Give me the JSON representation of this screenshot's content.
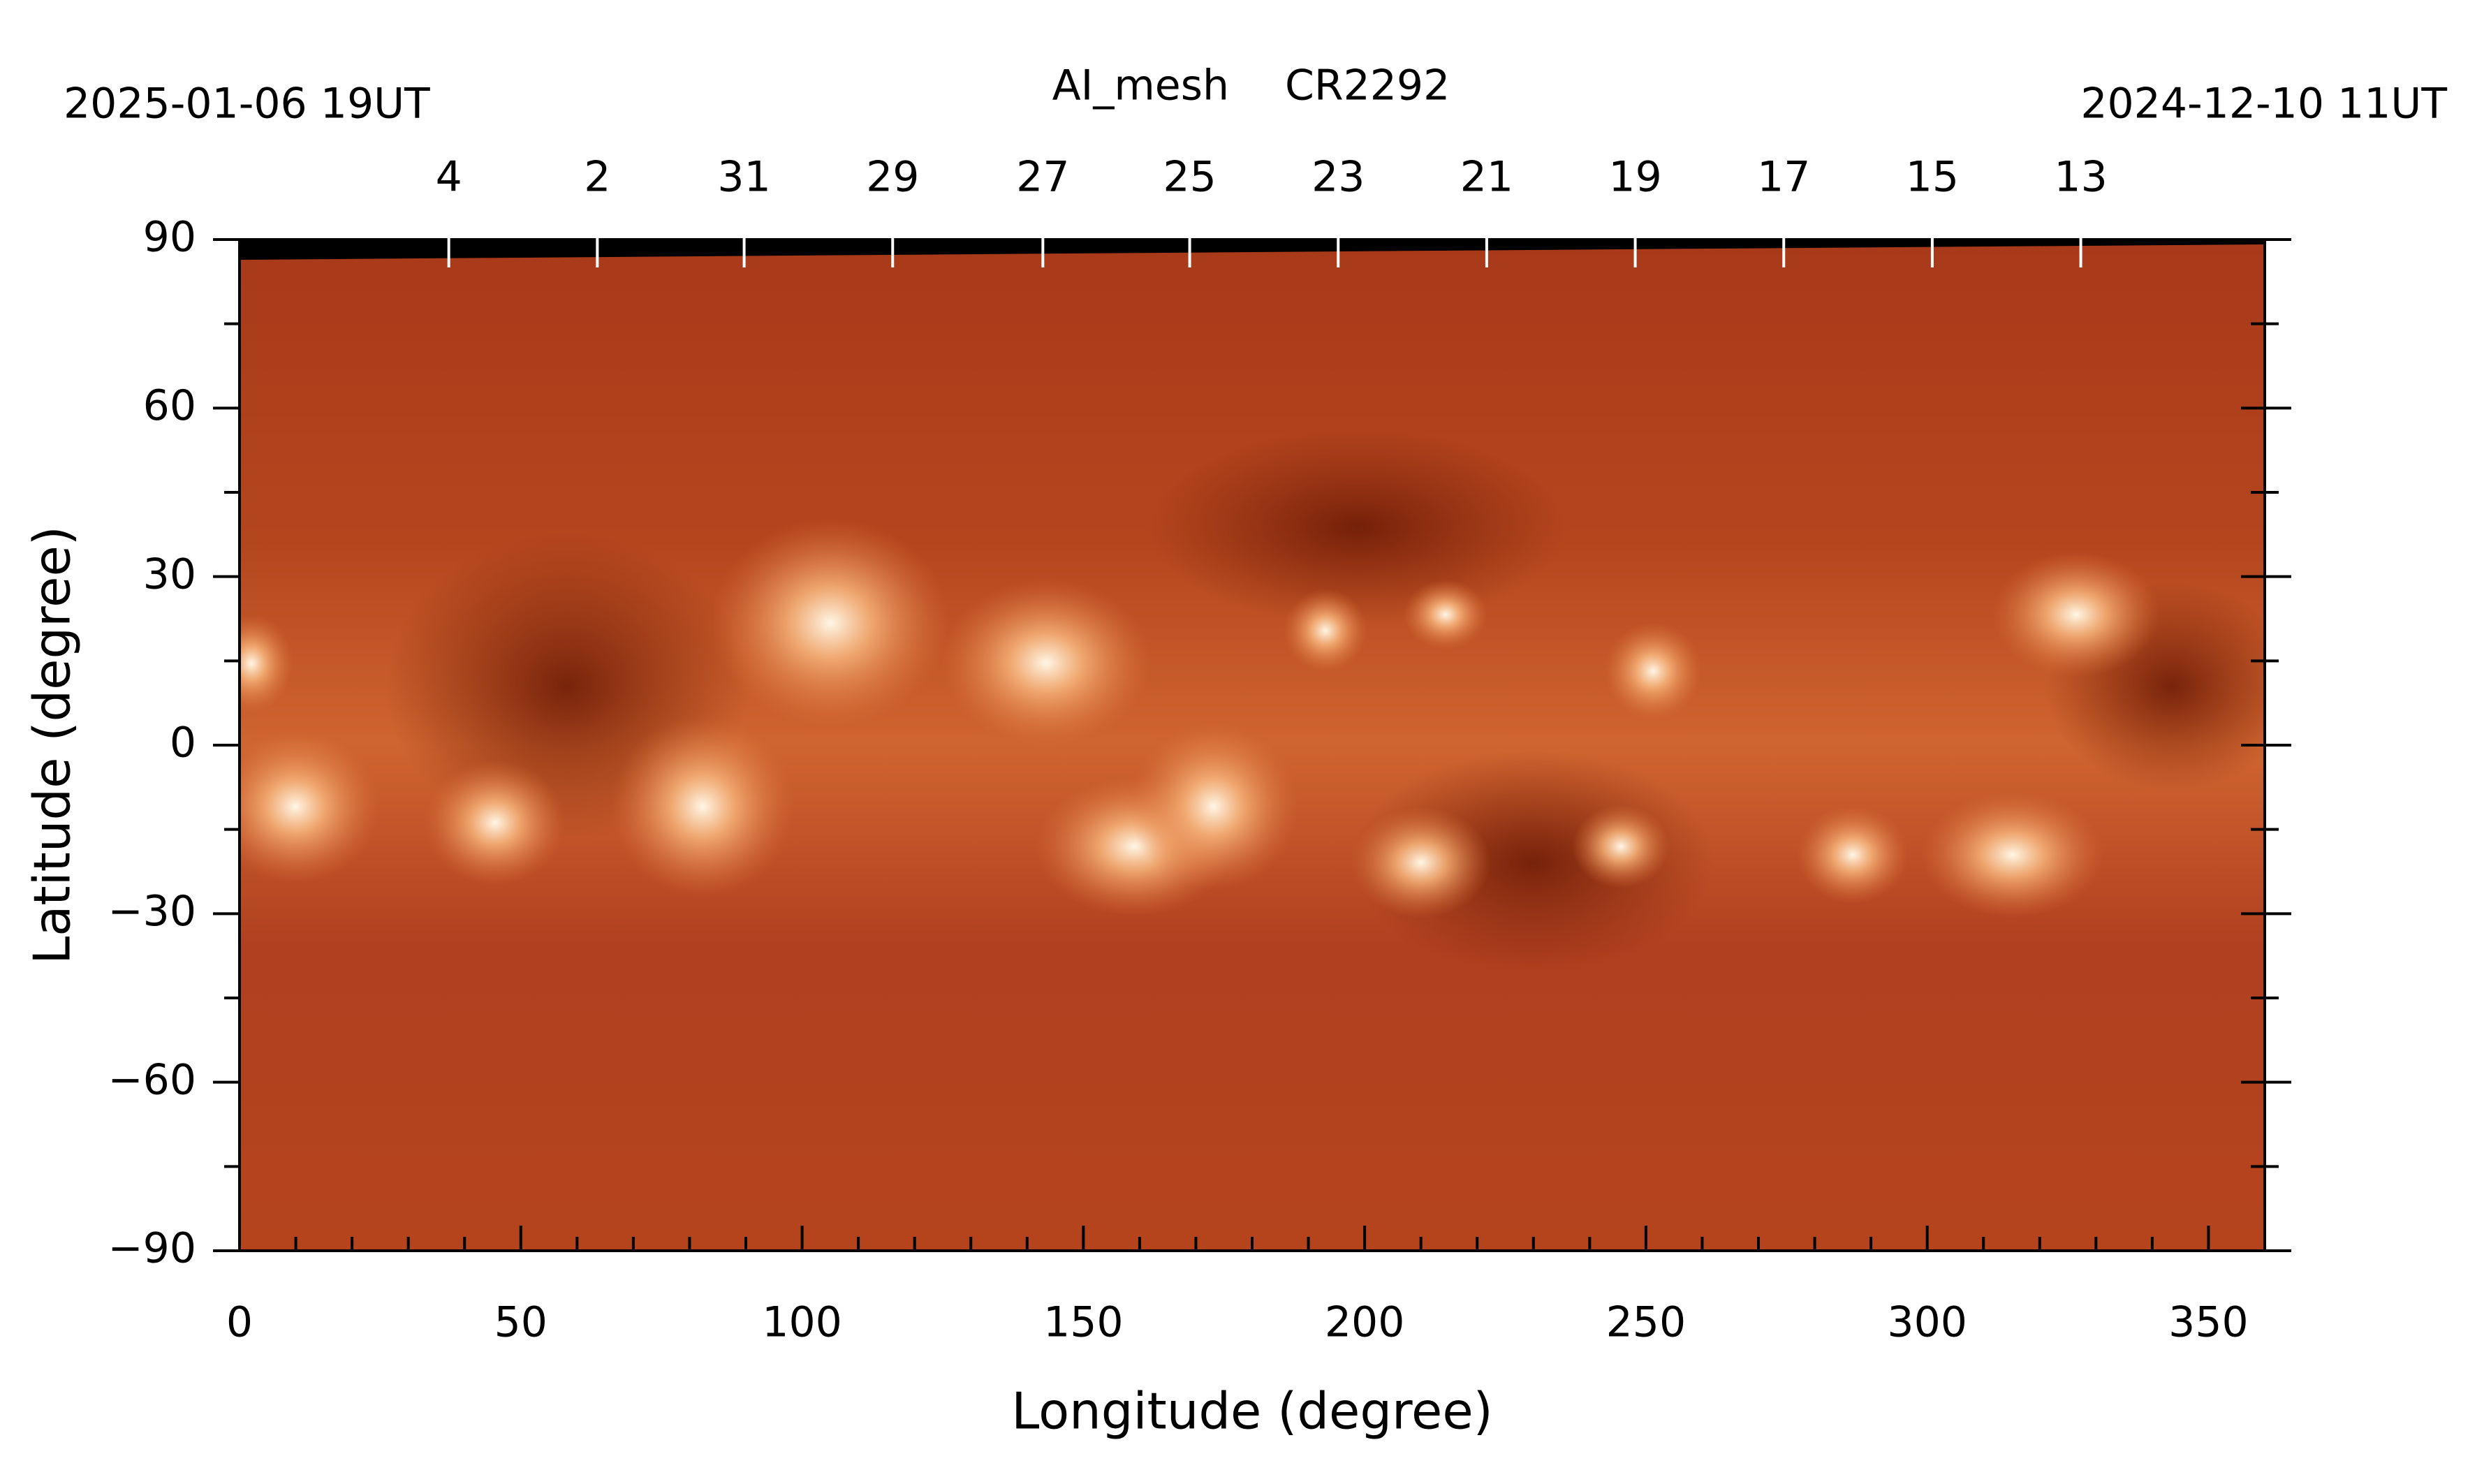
{
  "chart_data": {
    "type": "image",
    "title": "AI_mesh",
    "subtitle": "CR2292",
    "start_label": "2025-01-06  19UT",
    "end_label": "2024-12-10  11UT",
    "xlabel": "Longitude (degree)",
    "ylabel": "Latitude (degree)",
    "xlim": [
      0,
      360
    ],
    "ylim": [
      -90,
      90
    ],
    "xticks": [
      0,
      50,
      100,
      150,
      200,
      250,
      300,
      350
    ],
    "xminorticks": [
      10,
      20,
      30,
      40,
      60,
      70,
      80,
      90,
      110,
      120,
      130,
      140,
      160,
      170,
      180,
      190,
      210,
      220,
      230,
      240,
      260,
      270,
      280,
      290,
      310,
      320,
      330,
      340,
      360
    ],
    "yticks": [
      {
        "value": -90,
        "label": "−90"
      },
      {
        "value": -60,
        "label": "−60"
      },
      {
        "value": -30,
        "label": "−30"
      },
      0,
      30,
      60,
      90
    ],
    "yminorticks": [
      -75,
      -45,
      -15,
      15,
      45,
      75
    ],
    "date_ticks": [
      {
        "value": 37.2,
        "label": "4"
      },
      {
        "value": 63.6,
        "label": "2"
      },
      {
        "value": 89.7,
        "label": "31"
      },
      {
        "value": 116.1,
        "label": "29"
      },
      {
        "value": 142.8,
        "label": "27"
      },
      {
        "value": 168.9,
        "label": "25"
      },
      {
        "value": 195.3,
        "label": "23"
      },
      {
        "value": 221.7,
        "label": "21"
      },
      {
        "value": 248.1,
        "label": "19"
      },
      {
        "value": 274.5,
        "label": "17"
      },
      {
        "value": 300.9,
        "label": "15"
      },
      {
        "value": 327.3,
        "label": "13"
      }
    ]
  }
}
